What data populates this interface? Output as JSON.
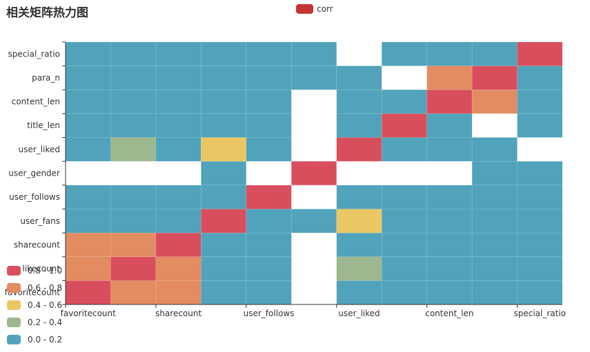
{
  "title": "相关矩阵热力图",
  "legend": {
    "label": "corr",
    "color": "#c23531"
  },
  "visual_map": [
    {
      "label": "0.8 - 1.0",
      "color": "#d94e5d"
    },
    {
      "label": "0.6 - 0.8",
      "color": "#e38b61"
    },
    {
      "label": "0.4 - 0.6",
      "color": "#eac763"
    },
    {
      "label": "0.2 - 0.4",
      "color": "#9db78f"
    },
    {
      "label": "0.0 - 0.2",
      "color": "#50a3ba"
    }
  ],
  "chart_data": {
    "type": "heatmap",
    "title": "相关矩阵热力图",
    "x_categories": [
      "favoritecount",
      "likecount",
      "sharecount",
      "user_fans",
      "user_follows",
      "user_gender",
      "user_liked",
      "title_len",
      "content_len",
      "para_n",
      "special_ratio"
    ],
    "x_tick_labels": [
      "favoritecount",
      "sharecount",
      "user_follows",
      "user_liked",
      "content_len",
      "special_ratio"
    ],
    "y_categories": [
      "favoritecount",
      "likecount",
      "sharecount",
      "user_fans",
      "user_follows",
      "user_gender",
      "user_liked",
      "title_len",
      "content_len",
      "para_n",
      "special_ratio"
    ],
    "values": [
      [
        1.0,
        0.7,
        0.7,
        0.1,
        0.1,
        null,
        0.1,
        0.1,
        0.1,
        0.1,
        0.1
      ],
      [
        0.7,
        1.0,
        0.7,
        0.1,
        0.1,
        null,
        0.3,
        0.1,
        0.1,
        0.1,
        0.1
      ],
      [
        0.7,
        0.7,
        1.0,
        0.1,
        0.1,
        null,
        0.1,
        0.1,
        0.1,
        0.1,
        0.1
      ],
      [
        0.1,
        0.1,
        0.1,
        1.0,
        0.1,
        0.1,
        0.5,
        0.1,
        0.1,
        0.1,
        0.1
      ],
      [
        0.1,
        0.1,
        0.1,
        0.1,
        1.0,
        null,
        0.1,
        0.1,
        0.1,
        0.1,
        0.1
      ],
      [
        null,
        null,
        null,
        0.1,
        null,
        1.0,
        null,
        null,
        null,
        0.1,
        0.1
      ],
      [
        0.1,
        0.3,
        0.1,
        0.5,
        0.1,
        null,
        1.0,
        0.1,
        0.1,
        0.1,
        null
      ],
      [
        0.1,
        0.1,
        0.1,
        0.1,
        0.1,
        null,
        0.1,
        1.0,
        0.1,
        null,
        0.1
      ],
      [
        0.1,
        0.1,
        0.1,
        0.1,
        0.1,
        null,
        0.1,
        0.1,
        1.0,
        0.7,
        0.1
      ],
      [
        0.1,
        0.1,
        0.1,
        0.1,
        0.1,
        0.1,
        0.1,
        null,
        0.7,
        1.0,
        0.1
      ],
      [
        0.1,
        0.1,
        0.1,
        0.1,
        0.1,
        0.1,
        null,
        0.1,
        0.1,
        0.1,
        1.0
      ]
    ],
    "value_range": [
      0,
      1
    ],
    "legend": "top-center",
    "grid": false
  }
}
